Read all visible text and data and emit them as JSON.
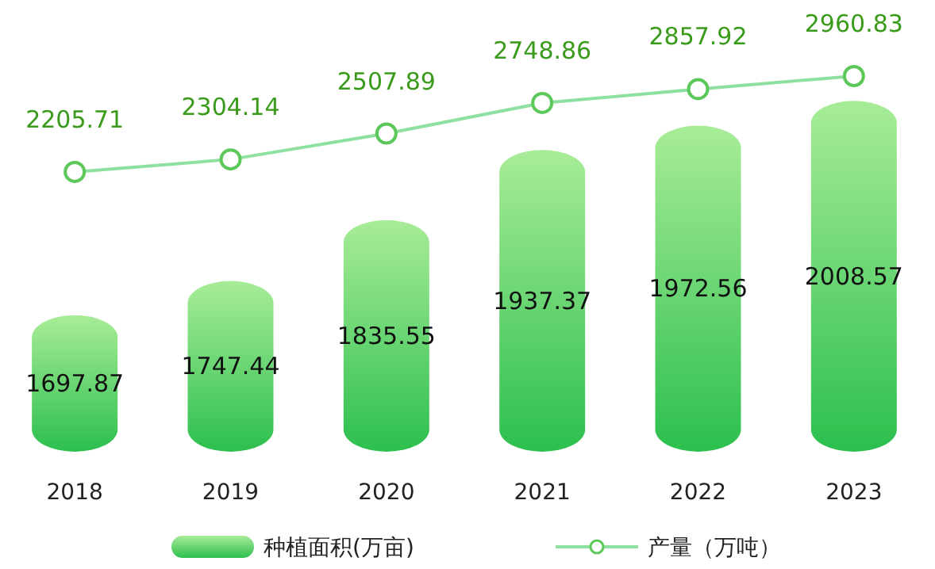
{
  "chart_data": {
    "type": "bar",
    "categories": [
      "2018",
      "2019",
      "2020",
      "2021",
      "2022",
      "2023"
    ],
    "series": [
      {
        "name": "种植面积(万亩)",
        "color": "#2cbf4e",
        "values": [
          1697.87,
          1747.44,
          1835.55,
          1937.37,
          1972.56,
          2008.57
        ]
      },
      {
        "name": "产量（万吨）",
        "type": "line",
        "axis": "y2",
        "color": "#8ee0a0",
        "marker": "circle",
        "values": [
          2205.71,
          2304.14,
          2507.89,
          2748.86,
          2857.92,
          2960.83
        ]
      }
    ],
    "ylim": [
      1500,
      2010
    ],
    "data_labels": true,
    "legend": "bottom"
  }
}
